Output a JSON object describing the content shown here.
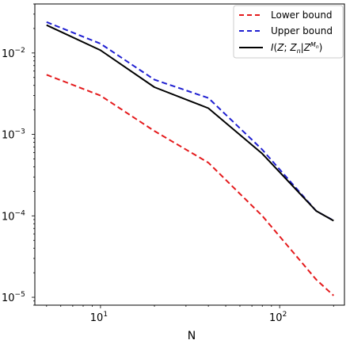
{
  "chart_data": {
    "type": "line",
    "xlabel": "N",
    "ylabel": "",
    "title": "",
    "x_scale": "log",
    "y_scale": "log",
    "xlim": [
      4.3,
      230
    ],
    "ylim": [
      8e-06,
      0.04
    ],
    "grid": false,
    "legend_position": "top-right",
    "x": [
      5,
      10,
      20,
      40,
      80,
      160,
      200
    ],
    "x_ticks": [
      {
        "value": 10,
        "base": "10",
        "exp": "1"
      },
      {
        "value": 100,
        "base": "10",
        "exp": "2"
      }
    ],
    "y_ticks": [
      {
        "value": 1e-05,
        "base": "10",
        "exp": "−5"
      },
      {
        "value": 0.0001,
        "base": "10",
        "exp": "−4"
      },
      {
        "value": 0.001,
        "base": "10",
        "exp": "−3"
      },
      {
        "value": 0.01,
        "base": "10",
        "exp": "−2"
      }
    ],
    "series": [
      {
        "key": "lower",
        "name": "Lower bound",
        "color": "#e41a1c",
        "dash": "dashed",
        "values": [
          0.0054,
          0.003,
          0.0011,
          0.00045,
          0.0001,
          1.65e-05,
          1.05e-05
        ]
      },
      {
        "key": "upper",
        "name": "Upper bound",
        "color": "#1f1fd1",
        "dash": "dashed",
        "values": [
          0.024,
          0.013,
          0.0047,
          0.0028,
          0.00065,
          0.000115,
          8.75e-05
        ]
      },
      {
        "key": "exact",
        "name": "",
        "name_parts": {
          "i": "I",
          "open": "(",
          "z1": "Z",
          "sep1": "; ",
          "z2": "Z",
          "sub": "n",
          "bar": "|",
          "z3": "Z",
          "sup_m": "M",
          "sup_n": "n",
          "close": ")"
        },
        "color": "#000000",
        "dash": "solid",
        "values": [
          0.022,
          0.0108,
          0.0038,
          0.0021,
          0.00058,
          0.000115,
          8.7e-05
        ]
      }
    ]
  }
}
